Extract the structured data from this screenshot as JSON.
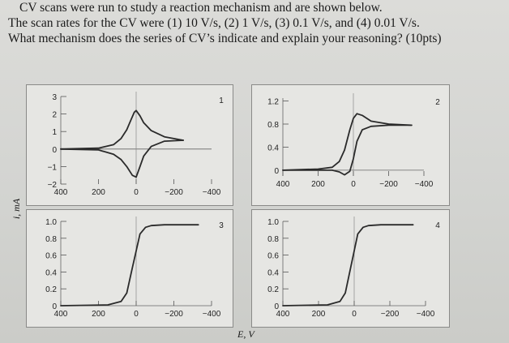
{
  "question": {
    "line1": "CV scans were run to study a reaction mechanism and are shown below.",
    "line2": "The scan rates for the CV were (1) 10 V/s, (2) 1 V/s, (3) 0.1 V/s, and (4) 0.01 V/s.",
    "line3": "What mechanism does the series of CV’s indicate and explain your reasoning? (10pts)"
  },
  "shared_axes": {
    "ylabel": "i, mA",
    "xlabel": "E, V"
  },
  "chart_data": [
    {
      "type": "line",
      "panel_label": "1",
      "xlim": [
        400,
        -400
      ],
      "ylim": [
        -2,
        3
      ],
      "xticks": [
        400,
        200,
        0,
        -200,
        -400
      ],
      "xtick_labels": [
        "400",
        "200",
        "0",
        "−200",
        "−400"
      ],
      "yticks": [
        3,
        2,
        1,
        0,
        -1,
        -2
      ],
      "ytick_labels": [
        "3",
        "2",
        "1",
        "0",
        "−1",
        "−2"
      ],
      "series": [
        {
          "x": [
            400,
            200,
            120,
            80,
            50,
            30,
            10,
            0,
            -20,
            -40,
            -80,
            -150,
            -250
          ],
          "y": [
            0,
            0.05,
            0.25,
            0.6,
            1.1,
            1.6,
            2.1,
            2.2,
            1.9,
            1.5,
            1.05,
            0.7,
            0.5
          ]
        },
        {
          "x": [
            -250,
            -150,
            -80,
            -40,
            -20,
            0,
            20,
            50,
            80,
            120,
            200,
            400
          ],
          "y": [
            0.5,
            0.45,
            0.15,
            -0.4,
            -1.0,
            -1.6,
            -1.5,
            -1.0,
            -0.6,
            -0.3,
            -0.05,
            0
          ]
        }
      ]
    },
    {
      "type": "line",
      "panel_label": "2",
      "xlim": [
        400,
        -400
      ],
      "ylim": [
        -0.1,
        1.25
      ],
      "xticks": [
        400,
        200,
        0,
        -200,
        -400
      ],
      "xtick_labels": [
        "400",
        "200",
        "0",
        "−200",
        "−400"
      ],
      "yticks": [
        1.2,
        0.8,
        0.4,
        0
      ],
      "ytick_labels": [
        "1.2",
        "0.8",
        "0.4",
        "0"
      ],
      "series": [
        {
          "x": [
            400,
            200,
            120,
            80,
            50,
            20,
            0,
            -20,
            -50,
            -100,
            -200,
            -330
          ],
          "y": [
            0,
            0.02,
            0.05,
            0.15,
            0.35,
            0.7,
            0.9,
            0.98,
            0.95,
            0.85,
            0.8,
            0.78
          ]
        },
        {
          "x": [
            -330,
            -200,
            -100,
            -50,
            -20,
            0,
            20,
            50,
            80,
            120,
            200,
            400
          ],
          "y": [
            0.78,
            0.78,
            0.76,
            0.7,
            0.5,
            0.2,
            -0.02,
            -0.08,
            -0.03,
            0,
            0,
            0
          ]
        }
      ]
    },
    {
      "type": "line",
      "panel_label": "3",
      "xlim": [
        400,
        -400
      ],
      "ylim": [
        0,
        1.0
      ],
      "xticks": [
        400,
        200,
        0,
        -200,
        -400
      ],
      "xtick_labels": [
        "400",
        "200",
        "0",
        "−200",
        "−400"
      ],
      "yticks": [
        1.0,
        0.8,
        0.6,
        0.4,
        0.2,
        0
      ],
      "ytick_labels": [
        "1.0",
        "0.8",
        "0.6",
        "0.4",
        "0.2",
        "0"
      ],
      "series": [
        {
          "x": [
            400,
            150,
            80,
            50,
            20,
            0,
            -20,
            -50,
            -80,
            -150,
            -330
          ],
          "y": [
            0,
            0.01,
            0.05,
            0.15,
            0.45,
            0.65,
            0.85,
            0.93,
            0.95,
            0.96,
            0.96
          ]
        }
      ]
    },
    {
      "type": "line",
      "panel_label": "4",
      "xlim": [
        400,
        -400
      ],
      "ylim": [
        0,
        1.0
      ],
      "xticks": [
        400,
        200,
        0,
        -200,
        -400
      ],
      "xtick_labels": [
        "400",
        "200",
        "0",
        "−200",
        "−400"
      ],
      "yticks": [
        1.0,
        0.8,
        0.6,
        0.4,
        0.2,
        0
      ],
      "ytick_labels": [
        "1.0",
        "0.8",
        "0.6",
        "0.4",
        "0.2",
        "0"
      ],
      "series": [
        {
          "x": [
            400,
            150,
            80,
            50,
            20,
            0,
            -20,
            -50,
            -80,
            -150,
            -330
          ],
          "y": [
            0,
            0.01,
            0.05,
            0.15,
            0.45,
            0.65,
            0.85,
            0.93,
            0.95,
            0.96,
            0.96
          ]
        }
      ]
    }
  ]
}
